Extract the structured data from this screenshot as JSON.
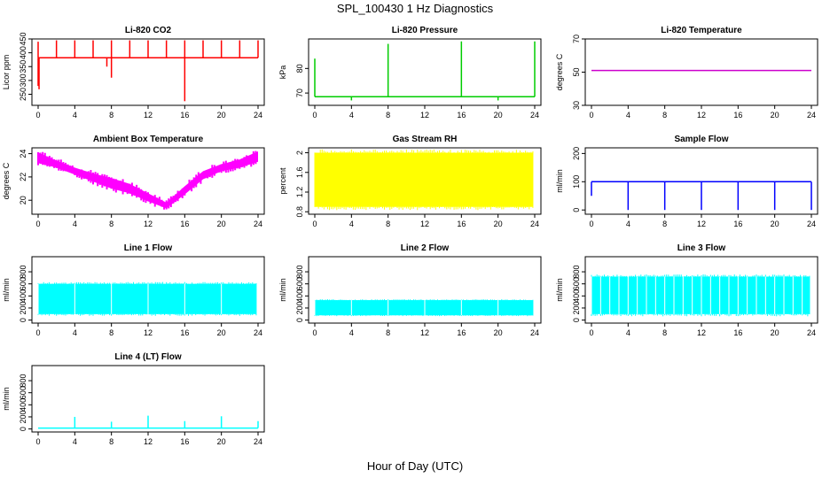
{
  "suptitle": "SPL_100430  1 Hz Diagnostics",
  "xlabel": "Hour of Day (UTC)",
  "chart_data": [
    {
      "type": "line",
      "title": "Li-820 CO2",
      "ylabel": "Licor ppm",
      "color": "#ff0000",
      "ylim": [
        210,
        450
      ],
      "yticks": [
        250,
        300,
        350,
        400,
        450
      ],
      "xlim": [
        0,
        24
      ],
      "xticks": [
        0,
        4,
        8,
        12,
        16,
        20,
        24
      ],
      "baseline": 382,
      "spikes_up": [
        [
          0,
          440
        ],
        [
          2,
          445
        ],
        [
          4,
          445
        ],
        [
          6,
          445
        ],
        [
          8,
          445
        ],
        [
          10,
          445
        ],
        [
          12,
          445
        ],
        [
          14,
          445
        ],
        [
          16,
          445
        ],
        [
          18,
          445
        ],
        [
          20,
          445
        ],
        [
          22,
          445
        ],
        [
          24,
          445
        ]
      ],
      "spikes_down": [
        [
          0,
          280
        ],
        [
          0.1,
          268
        ],
        [
          7.5,
          350
        ],
        [
          8,
          310
        ],
        [
          16,
          225
        ]
      ]
    },
    {
      "type": "line",
      "title": "Li-820 Pressure",
      "ylabel": "kPa",
      "color": "#00cc00",
      "ylim": [
        65,
        92
      ],
      "yticks": [
        70,
        80
      ],
      "xlim": [
        0,
        24
      ],
      "xticks": [
        0,
        4,
        8,
        12,
        16,
        20,
        24
      ],
      "baseline": 68.5,
      "spikes_up": [
        [
          0,
          84
        ],
        [
          8,
          90
        ],
        [
          16,
          91
        ],
        [
          24,
          91
        ]
      ],
      "spikes_down": [
        [
          4,
          67
        ],
        [
          20,
          67
        ]
      ]
    },
    {
      "type": "line",
      "title": "Li-820 Temperature",
      "ylabel": "degrees C",
      "color": "#cc00cc",
      "ylim": [
        30,
        70
      ],
      "yticks": [
        30,
        50,
        70
      ],
      "xlim": [
        0,
        24
      ],
      "xticks": [
        0,
        4,
        8,
        12,
        16,
        20,
        24
      ],
      "baseline": 51
    },
    {
      "type": "area",
      "title": "Ambient Box Temperature",
      "ylabel": "degrees C",
      "color": "#ff00ff",
      "ylim": [
        18.8,
        24.5
      ],
      "yticks": [
        20,
        22,
        24
      ],
      "xlim": [
        0,
        24
      ],
      "xticks": [
        0,
        4,
        8,
        12,
        16,
        20,
        24
      ],
      "x": [
        0,
        2,
        4,
        6,
        8,
        10,
        12,
        14,
        16,
        18,
        20,
        22,
        24
      ],
      "y_upper": [
        24.1,
        23.4,
        22.8,
        22.3,
        21.9,
        21.4,
        20.6,
        19.8,
        21.2,
        22.5,
        23.1,
        23.5,
        24.2
      ],
      "y_lower": [
        23.2,
        22.8,
        22.2,
        21.6,
        21.0,
        20.6,
        19.9,
        19.3,
        20.5,
        21.8,
        22.5,
        22.8,
        23.3
      ]
    },
    {
      "type": "area",
      "title": "Gas Stream RH",
      "ylabel": "percent",
      "color": "#ffff00",
      "ylim": [
        0.75,
        2.1
      ],
      "yticks": [
        0.8,
        1.2,
        1.6,
        2.0
      ],
      "xlim": [
        0,
        24
      ],
      "xticks": [
        0,
        4,
        8,
        12,
        16,
        20,
        24
      ],
      "y_upper": 2.0,
      "y_lower": 0.9
    },
    {
      "type": "line",
      "title": "Sample Flow",
      "ylabel": "ml/min",
      "color": "#0000ff",
      "ylim": [
        -15,
        220
      ],
      "yticks": [
        0,
        100,
        200
      ],
      "xlim": [
        0,
        24
      ],
      "xticks": [
        0,
        4,
        8,
        12,
        16,
        20,
        24
      ],
      "baseline": 100,
      "spikes_down": [
        [
          0,
          50
        ],
        [
          4,
          0
        ],
        [
          8,
          0
        ],
        [
          12,
          0
        ],
        [
          16,
          0
        ],
        [
          20,
          0
        ],
        [
          24,
          0
        ]
      ]
    },
    {
      "type": "area",
      "title": "Line 1 Flow",
      "ylabel": "ml/min",
      "color": "#00ffff",
      "ylim": [
        -50,
        1050
      ],
      "yticks": [
        0,
        200,
        400,
        600,
        800
      ],
      "xlim": [
        0,
        24
      ],
      "xticks": [
        0,
        4,
        8,
        12,
        16,
        20,
        24
      ],
      "y_upper": 600,
      "y_lower": 100
    },
    {
      "type": "area",
      "title": "Line 2 Flow",
      "ylabel": "ml/min",
      "color": "#00ffff",
      "ylim": [
        -50,
        1050
      ],
      "yticks": [
        0,
        200,
        400,
        600,
        800
      ],
      "xlim": [
        0,
        24
      ],
      "xticks": [
        0,
        4,
        8,
        12,
        16,
        20,
        24
      ],
      "y_upper": 330,
      "y_lower": 80
    },
    {
      "type": "area",
      "title": "Line 3 Flow",
      "ylabel": "ml/min",
      "color": "#00ffff",
      "ylim": [
        -50,
        1050
      ],
      "yticks": [
        0,
        200,
        400,
        600,
        800
      ],
      "xlim": [
        0,
        24
      ],
      "xticks": [
        0,
        4,
        8,
        12,
        16,
        20,
        24
      ],
      "y_upper": 720,
      "y_lower": 100
    },
    {
      "type": "line",
      "title": "Line 4 (LT) Flow",
      "ylabel": "ml/min",
      "color": "#00ffff",
      "ylim": [
        -50,
        1050
      ],
      "yticks": [
        0,
        200,
        400,
        600,
        800
      ],
      "xlim": [
        0,
        24
      ],
      "xticks": [
        0,
        4,
        8,
        12,
        16,
        20,
        24
      ],
      "baseline": 15,
      "spikes_up": [
        [
          4,
          200
        ],
        [
          8,
          120
        ],
        [
          12,
          220
        ],
        [
          16,
          130
        ],
        [
          20,
          210
        ],
        [
          24,
          130
        ]
      ]
    }
  ]
}
